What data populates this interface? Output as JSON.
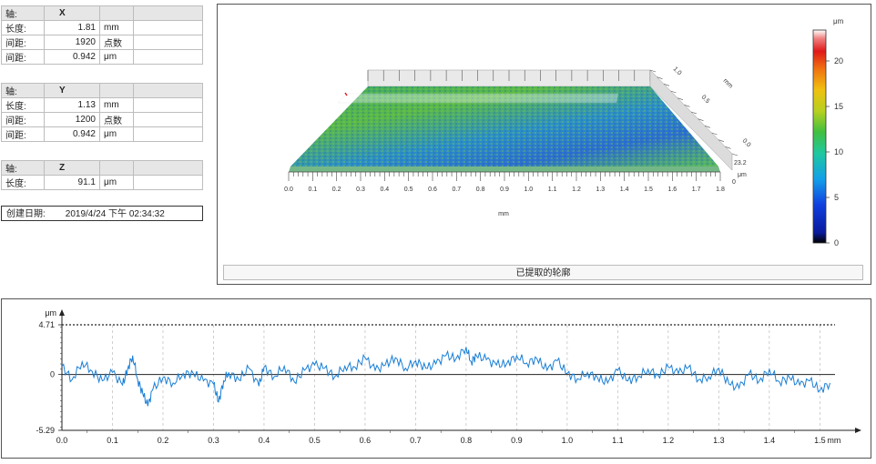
{
  "axis_label": "轴:",
  "x_axis": {
    "name": "X",
    "length_label": "长度:",
    "length_value": "1.81",
    "length_unit": "mm",
    "spacing_label": "间距:",
    "count_value": "1920",
    "count_unit": "点数",
    "pitch_value": "0.942",
    "pitch_unit": "μm"
  },
  "y_axis": {
    "name": "Y",
    "length_label": "长度:",
    "length_value": "1.13",
    "length_unit": "mm",
    "spacing_label": "间距:",
    "count_value": "1200",
    "count_unit": "点数",
    "pitch_value": "0.942",
    "pitch_unit": "μm"
  },
  "z_axis": {
    "name": "Z",
    "length_label": "长度:",
    "length_value": "91.1",
    "length_unit": "μm"
  },
  "created": {
    "label": "创建日期:",
    "value": "2019/4/24 下午 02:34:32"
  },
  "view3d": {
    "x_ticks": [
      "0.0",
      "0.1",
      "0.2",
      "0.3",
      "0.4",
      "0.5",
      "0.6",
      "0.7",
      "0.8",
      "0.9",
      "1.0",
      "1.1",
      "1.2",
      "1.3",
      "1.4",
      "1.5",
      "1.6",
      "1.7",
      "1.8"
    ],
    "x_unit": "mm",
    "y_ticks": [
      "1.0",
      "0.5",
      "0.0"
    ],
    "y_unit": "mm",
    "z_top": "23.2",
    "z_unit": "μm",
    "z_bottom": "0",
    "colorbar_unit": "μm",
    "colorbar_ticks": [
      "20",
      "15",
      "10",
      "5",
      "0"
    ],
    "caption": "已提取的轮廓"
  },
  "chart_data": {
    "type": "line",
    "xlabel": "mm",
    "ylabel": "μm",
    "xlim": [
      0,
      1.53
    ],
    "ylim": [
      -5.29,
      4.71
    ],
    "x_ticks": [
      "0.0",
      "0.1",
      "0.2",
      "0.3",
      "0.4",
      "0.5",
      "0.6",
      "0.7",
      "0.8",
      "0.9",
      "1.0",
      "1.1",
      "1.2",
      "1.3",
      "1.4",
      "1.5"
    ],
    "y_ticks": [
      "4.71",
      "0",
      "-5.29"
    ],
    "grid": true,
    "series": [
      {
        "color": "#1a7fd6",
        "x": [
          0.0,
          0.02,
          0.04,
          0.06,
          0.08,
          0.1,
          0.12,
          0.13,
          0.14,
          0.15,
          0.16,
          0.17,
          0.18,
          0.2,
          0.22,
          0.24,
          0.26,
          0.28,
          0.3,
          0.31,
          0.32,
          0.33,
          0.35,
          0.37,
          0.39,
          0.4,
          0.42,
          0.44,
          0.46,
          0.48,
          0.5,
          0.52,
          0.54,
          0.56,
          0.58,
          0.6,
          0.62,
          0.64,
          0.66,
          0.68,
          0.7,
          0.72,
          0.74,
          0.76,
          0.78,
          0.8,
          0.81,
          0.82,
          0.84,
          0.86,
          0.88,
          0.9,
          0.92,
          0.94,
          0.96,
          0.98,
          1.0,
          1.02,
          1.04,
          1.06,
          1.08,
          1.1,
          1.12,
          1.14,
          1.16,
          1.18,
          1.2,
          1.22,
          1.24,
          1.26,
          1.28,
          1.3,
          1.32,
          1.34,
          1.36,
          1.38,
          1.4,
          1.42,
          1.44,
          1.46,
          1.48,
          1.5,
          1.52
        ],
        "values": [
          0.8,
          -0.5,
          1.2,
          0.3,
          -0.6,
          0.2,
          -1.0,
          0.5,
          1.8,
          -0.5,
          -1.8,
          -3.0,
          -1.4,
          -0.3,
          -0.8,
          0.1,
          0.1,
          -0.6,
          -0.9,
          -2.6,
          -0.6,
          0.2,
          -0.5,
          0.6,
          -1.1,
          0.7,
          -0.2,
          0.8,
          -0.7,
          0.4,
          0.9,
          0.6,
          -0.2,
          0.8,
          0.7,
          1.6,
          0.4,
          0.9,
          1.6,
          0.6,
          1.3,
          0.6,
          1.0,
          1.8,
          1.5,
          2.6,
          1.2,
          1.8,
          1.4,
          0.9,
          1.0,
          1.8,
          1.1,
          1.5,
          0.4,
          1.3,
          0.1,
          -0.4,
          0.2,
          -0.3,
          -0.8,
          0.4,
          -0.6,
          -0.2,
          0.5,
          -0.1,
          0.7,
          0.1,
          0.7,
          -0.5,
          -0.2,
          0.6,
          -0.9,
          -1.3,
          0.1,
          -0.6,
          0.5,
          -0.7,
          -0.3,
          -1.0,
          -0.6,
          -1.5,
          -0.8
        ]
      }
    ]
  }
}
